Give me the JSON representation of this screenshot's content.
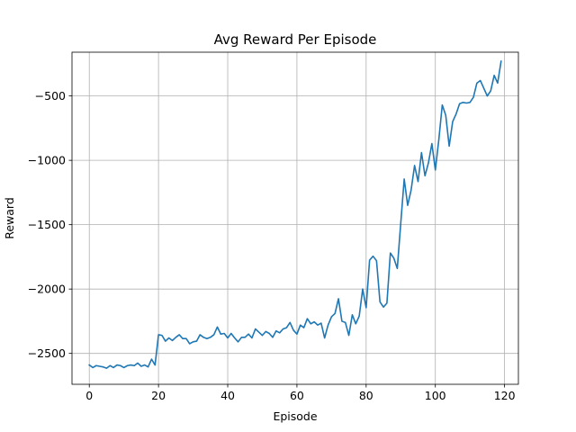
{
  "chart_data": {
    "type": "line",
    "title": "Avg Reward Per Episode",
    "xlabel": "Episode",
    "ylabel": "Reward",
    "xlim": [
      -5,
      124
    ],
    "ylim": [
      -2740,
      -160
    ],
    "xticks": [
      0,
      20,
      40,
      60,
      80,
      100,
      120
    ],
    "yticks": [
      -2500,
      -2000,
      -1500,
      -1000,
      -500
    ],
    "xtick_labels": [
      "0",
      "20",
      "40",
      "60",
      "80",
      "100",
      "120"
    ],
    "ytick_labels": [
      "−2500",
      "−2000",
      "−1500",
      "−1000",
      "−500"
    ],
    "grid": true,
    "line_color": "#1f77b4",
    "series": [
      {
        "x": [
          0,
          1,
          2,
          3,
          4,
          5,
          6,
          7,
          8,
          9,
          10,
          11,
          12,
          13,
          14,
          15,
          16,
          17,
          18,
          19,
          20,
          21,
          22,
          23,
          24,
          25,
          26,
          27,
          28,
          29,
          30,
          31,
          32,
          33,
          34,
          35,
          36,
          37,
          38,
          39,
          40,
          41,
          42,
          43,
          44,
          45,
          46,
          47,
          48,
          49,
          50,
          51,
          52,
          53,
          54,
          55,
          56,
          57,
          58,
          59,
          60,
          61,
          62,
          63,
          64,
          65,
          66,
          67,
          68,
          69,
          70,
          71,
          72,
          73,
          74,
          75,
          76,
          77,
          78,
          79,
          80,
          81,
          82,
          83,
          84,
          85,
          86,
          87,
          88,
          89,
          90,
          91,
          92,
          93,
          94,
          95,
          96,
          97,
          98,
          99,
          100,
          101,
          102,
          103,
          104,
          105,
          106,
          107,
          108,
          109,
          110,
          111,
          112,
          113,
          114,
          115,
          116,
          117,
          118,
          119
        ],
        "values": [
          -2590,
          -2610,
          -2595,
          -2600,
          -2605,
          -2615,
          -2595,
          -2610,
          -2590,
          -2595,
          -2610,
          -2595,
          -2590,
          -2595,
          -2575,
          -2600,
          -2590,
          -2605,
          -2545,
          -2590,
          -2355,
          -2360,
          -2405,
          -2380,
          -2400,
          -2375,
          -2355,
          -2385,
          -2385,
          -2425,
          -2410,
          -2405,
          -2355,
          -2375,
          -2385,
          -2375,
          -2355,
          -2295,
          -2350,
          -2345,
          -2380,
          -2345,
          -2380,
          -2410,
          -2375,
          -2375,
          -2350,
          -2380,
          -2310,
          -2335,
          -2360,
          -2330,
          -2345,
          -2375,
          -2325,
          -2340,
          -2310,
          -2300,
          -2260,
          -2320,
          -2350,
          -2280,
          -2300,
          -2230,
          -2270,
          -2255,
          -2280,
          -2265,
          -2380,
          -2280,
          -2215,
          -2190,
          -2075,
          -2250,
          -2260,
          -2360,
          -2200,
          -2270,
          -2210,
          -2000,
          -2145,
          -1775,
          -1745,
          -1780,
          -2100,
          -2140,
          -2110,
          -1720,
          -1760,
          -1840,
          -1490,
          -1145,
          -1350,
          -1230,
          -1040,
          -1165,
          -940,
          -1120,
          -1020,
          -870,
          -1075,
          -840,
          -570,
          -650,
          -890,
          -700,
          -640,
          -560,
          -550,
          -555,
          -550,
          -510,
          -400,
          -380,
          -440,
          -500,
          -460,
          -340,
          -400,
          -230
        ]
      }
    ]
  }
}
